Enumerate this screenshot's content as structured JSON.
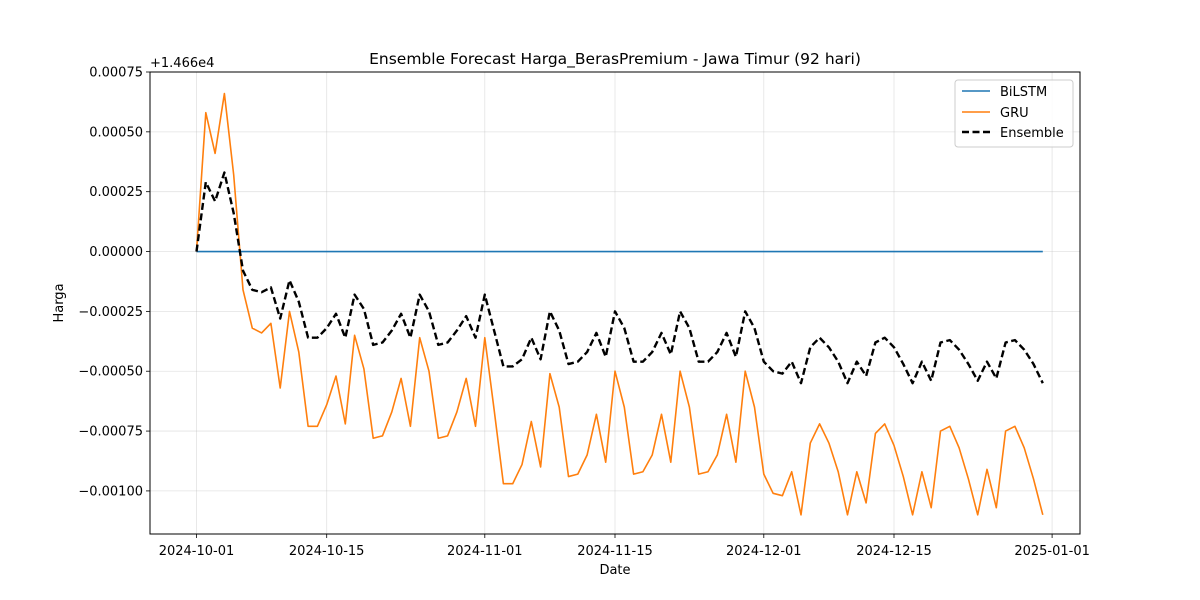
{
  "chart_data": {
    "type": "line",
    "title": "Ensemble Forecast Harga_BerasPremium - Jawa Timur (92 hari)",
    "xlabel": "Date",
    "ylabel": "Harga",
    "y_offset_label": "+1.466e4",
    "x_start_date": "2024-10-01",
    "xlim": [
      "2024-09-26",
      "2025-01-04"
    ],
    "ylim": [
      -0.00118,
      0.00075
    ],
    "x_ticks": [
      "2024-10-01",
      "2024-10-15",
      "2024-11-01",
      "2024-11-15",
      "2024-12-01",
      "2024-12-15",
      "2025-01-01"
    ],
    "y_ticks": [
      0.00075,
      0.0005,
      0.00025,
      0.0,
      -0.00025,
      -0.0005,
      -0.00075,
      -0.001
    ],
    "y_tick_labels": [
      "0.00075",
      "0.00050",
      "0.00025",
      "0.00000",
      "−0.00025",
      "−0.00050",
      "−0.00075",
      "−0.00100"
    ],
    "grid": true,
    "legend": "top-right",
    "series": [
      {
        "name": "BiLSTM",
        "color": "#1f77b4",
        "style": "solid",
        "values": [
          0.0,
          0.0,
          0.0,
          0.0,
          0.0,
          0.0,
          0.0,
          0.0,
          0.0,
          0.0,
          0.0,
          0.0,
          0.0,
          0.0,
          0.0,
          0.0,
          0.0,
          0.0,
          0.0,
          0.0,
          0.0,
          0.0,
          0.0,
          0.0,
          0.0,
          0.0,
          0.0,
          0.0,
          0.0,
          0.0,
          0.0,
          0.0,
          0.0,
          0.0,
          0.0,
          0.0,
          0.0,
          0.0,
          0.0,
          0.0,
          0.0,
          0.0,
          0.0,
          0.0,
          0.0,
          0.0,
          0.0,
          0.0,
          0.0,
          0.0,
          0.0,
          0.0,
          0.0,
          0.0,
          0.0,
          0.0,
          0.0,
          0.0,
          0.0,
          0.0,
          0.0,
          0.0,
          0.0,
          0.0,
          0.0,
          0.0,
          0.0,
          0.0,
          0.0,
          0.0,
          0.0,
          0.0,
          0.0,
          0.0,
          0.0,
          0.0,
          0.0,
          0.0,
          0.0,
          0.0,
          0.0,
          0.0,
          0.0,
          0.0,
          0.0,
          0.0,
          0.0,
          0.0,
          0.0,
          0.0,
          0.0,
          0.0
        ]
      },
      {
        "name": "GRU",
        "color": "#ff7f0e",
        "style": "solid",
        "values": [
          0.0,
          0.00058,
          0.00041,
          0.00066,
          0.00032,
          -0.00016,
          -0.00032,
          -0.00034,
          -0.0003,
          -0.00057,
          -0.00025,
          -0.00042,
          -0.00073,
          -0.00073,
          -0.00064,
          -0.00052,
          -0.00072,
          -0.00035,
          -0.00049,
          -0.00078,
          -0.00077,
          -0.00067,
          -0.00053,
          -0.00073,
          -0.00036,
          -0.0005,
          -0.00078,
          -0.00077,
          -0.00067,
          -0.00053,
          -0.00073,
          -0.00036,
          -0.00066,
          -0.00097,
          -0.00097,
          -0.00089,
          -0.00071,
          -0.0009,
          -0.00051,
          -0.00065,
          -0.00094,
          -0.00093,
          -0.00085,
          -0.00068,
          -0.00088,
          -0.0005,
          -0.00065,
          -0.00093,
          -0.00092,
          -0.00085,
          -0.00068,
          -0.00088,
          -0.0005,
          -0.00065,
          -0.00093,
          -0.00092,
          -0.00085,
          -0.00068,
          -0.00088,
          -0.0005,
          -0.00065,
          -0.00093,
          -0.00101,
          -0.00102,
          -0.00092,
          -0.0011,
          -0.0008,
          -0.00072,
          -0.0008,
          -0.00092,
          -0.0011,
          -0.00092,
          -0.00105,
          -0.00076,
          -0.00072,
          -0.00081,
          -0.00094,
          -0.0011,
          -0.00092,
          -0.00107,
          -0.00075,
          -0.00073,
          -0.00082,
          -0.00095,
          -0.0011,
          -0.00091,
          -0.00107,
          -0.00075,
          -0.00073,
          -0.00082,
          -0.00095,
          -0.0011
        ]
      },
      {
        "name": "Ensemble",
        "color": "#000000",
        "style": "dashed",
        "values": [
          0.0,
          0.00029,
          0.00021,
          0.00033,
          0.00016,
          -8e-05,
          -0.00016,
          -0.00017,
          -0.00015,
          -0.00028,
          -0.00012,
          -0.00021,
          -0.00036,
          -0.00036,
          -0.00032,
          -0.00026,
          -0.00036,
          -0.00018,
          -0.00024,
          -0.00039,
          -0.00038,
          -0.00033,
          -0.00026,
          -0.00036,
          -0.00018,
          -0.00025,
          -0.00039,
          -0.00038,
          -0.00033,
          -0.00027,
          -0.00036,
          -0.00018,
          -0.00033,
          -0.00048,
          -0.00048,
          -0.00045,
          -0.00036,
          -0.00045,
          -0.00025,
          -0.00033,
          -0.00047,
          -0.00046,
          -0.00042,
          -0.00034,
          -0.00044,
          -0.00025,
          -0.00032,
          -0.00046,
          -0.00046,
          -0.00042,
          -0.00034,
          -0.00043,
          -0.00025,
          -0.00032,
          -0.00046,
          -0.00046,
          -0.00042,
          -0.00034,
          -0.00044,
          -0.00025,
          -0.00032,
          -0.00046,
          -0.0005,
          -0.00051,
          -0.00046,
          -0.00055,
          -0.0004,
          -0.00036,
          -0.0004,
          -0.00046,
          -0.00055,
          -0.00046,
          -0.00052,
          -0.00038,
          -0.00036,
          -0.0004,
          -0.00047,
          -0.00055,
          -0.00046,
          -0.00054,
          -0.00038,
          -0.00037,
          -0.00041,
          -0.00047,
          -0.00054,
          -0.00046,
          -0.00053,
          -0.00038,
          -0.00037,
          -0.00041,
          -0.00047,
          -0.00055
        ]
      }
    ]
  }
}
